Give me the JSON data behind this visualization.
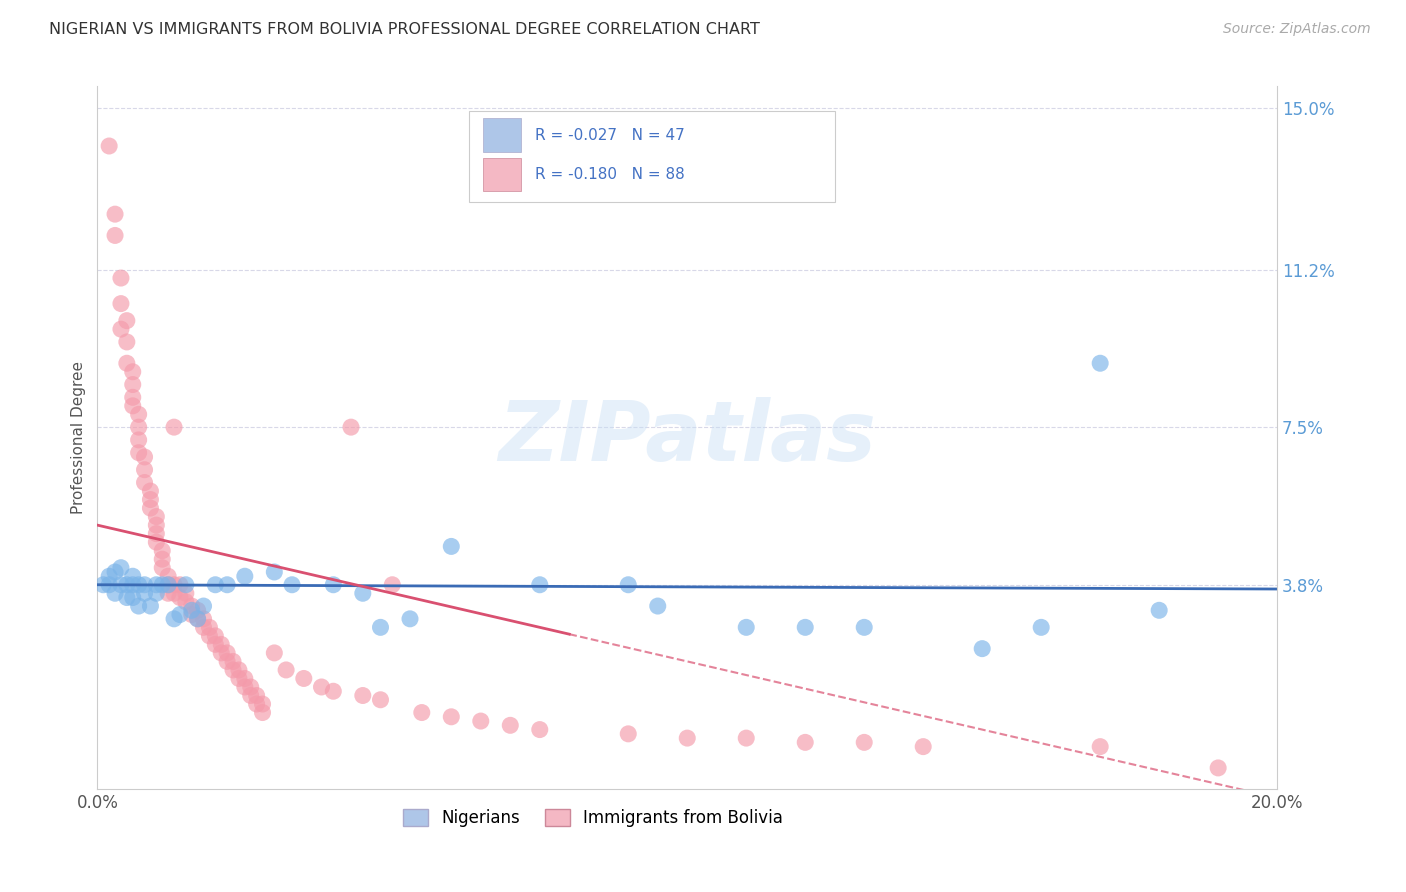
{
  "title": "NIGERIAN VS IMMIGRANTS FROM BOLIVIA PROFESSIONAL DEGREE CORRELATION CHART",
  "source": "Source: ZipAtlas.com",
  "ylabel": "Professional Degree",
  "watermark": "ZIPatlas",
  "xmin": 0.0,
  "xmax": 0.2,
  "ymin": -0.01,
  "ymax": 0.155,
  "ytick_vals": [
    0.038,
    0.075,
    0.112,
    0.15
  ],
  "ytick_labels": [
    "3.8%",
    "7.5%",
    "11.2%",
    "15.0%"
  ],
  "xtick_vals": [
    0.0,
    0.2
  ],
  "xtick_labels": [
    "0.0%",
    "20.0%"
  ],
  "nigerian_color": "#7ab3e8",
  "bolivian_color": "#f49aaa",
  "trend_nigerian_color": "#3a6bb5",
  "trend_bolivian_color": "#d95070",
  "background_color": "#ffffff",
  "grid_color": "#d8d8e8",
  "legend_blue_color": "#aec6e8",
  "legend_pink_color": "#f4b8c4",
  "nigerian_points": [
    [
      0.001,
      0.038
    ],
    [
      0.002,
      0.038
    ],
    [
      0.002,
      0.04
    ],
    [
      0.003,
      0.036
    ],
    [
      0.003,
      0.041
    ],
    [
      0.004,
      0.038
    ],
    [
      0.004,
      0.042
    ],
    [
      0.005,
      0.035
    ],
    [
      0.005,
      0.038
    ],
    [
      0.006,
      0.038
    ],
    [
      0.006,
      0.035
    ],
    [
      0.006,
      0.04
    ],
    [
      0.007,
      0.033
    ],
    [
      0.007,
      0.038
    ],
    [
      0.008,
      0.038
    ],
    [
      0.008,
      0.036
    ],
    [
      0.009,
      0.033
    ],
    [
      0.01,
      0.036
    ],
    [
      0.01,
      0.038
    ],
    [
      0.011,
      0.038
    ],
    [
      0.012,
      0.038
    ],
    [
      0.013,
      0.03
    ],
    [
      0.014,
      0.031
    ],
    [
      0.015,
      0.038
    ],
    [
      0.016,
      0.032
    ],
    [
      0.017,
      0.03
    ],
    [
      0.018,
      0.033
    ],
    [
      0.02,
      0.038
    ],
    [
      0.022,
      0.038
    ],
    [
      0.025,
      0.04
    ],
    [
      0.03,
      0.041
    ],
    [
      0.033,
      0.038
    ],
    [
      0.04,
      0.038
    ],
    [
      0.045,
      0.036
    ],
    [
      0.048,
      0.028
    ],
    [
      0.053,
      0.03
    ],
    [
      0.06,
      0.047
    ],
    [
      0.075,
      0.038
    ],
    [
      0.09,
      0.038
    ],
    [
      0.095,
      0.033
    ],
    [
      0.11,
      0.028
    ],
    [
      0.12,
      0.028
    ],
    [
      0.13,
      0.028
    ],
    [
      0.15,
      0.023
    ],
    [
      0.16,
      0.028
    ],
    [
      0.17,
      0.09
    ],
    [
      0.18,
      0.032
    ]
  ],
  "bolivian_points": [
    [
      0.002,
      0.141
    ],
    [
      0.003,
      0.125
    ],
    [
      0.003,
      0.12
    ],
    [
      0.004,
      0.11
    ],
    [
      0.004,
      0.104
    ],
    [
      0.004,
      0.098
    ],
    [
      0.005,
      0.1
    ],
    [
      0.005,
      0.095
    ],
    [
      0.005,
      0.09
    ],
    [
      0.006,
      0.088
    ],
    [
      0.006,
      0.085
    ],
    [
      0.006,
      0.082
    ],
    [
      0.006,
      0.08
    ],
    [
      0.007,
      0.078
    ],
    [
      0.007,
      0.075
    ],
    [
      0.007,
      0.072
    ],
    [
      0.007,
      0.069
    ],
    [
      0.008,
      0.068
    ],
    [
      0.008,
      0.065
    ],
    [
      0.008,
      0.062
    ],
    [
      0.009,
      0.06
    ],
    [
      0.009,
      0.058
    ],
    [
      0.009,
      0.056
    ],
    [
      0.01,
      0.054
    ],
    [
      0.01,
      0.052
    ],
    [
      0.01,
      0.05
    ],
    [
      0.01,
      0.048
    ],
    [
      0.011,
      0.046
    ],
    [
      0.011,
      0.044
    ],
    [
      0.011,
      0.042
    ],
    [
      0.012,
      0.04
    ],
    [
      0.012,
      0.038
    ],
    [
      0.012,
      0.036
    ],
    [
      0.013,
      0.075
    ],
    [
      0.013,
      0.038
    ],
    [
      0.013,
      0.036
    ],
    [
      0.014,
      0.038
    ],
    [
      0.014,
      0.035
    ],
    [
      0.015,
      0.036
    ],
    [
      0.015,
      0.034
    ],
    [
      0.016,
      0.033
    ],
    [
      0.016,
      0.031
    ],
    [
      0.017,
      0.032
    ],
    [
      0.017,
      0.03
    ],
    [
      0.018,
      0.03
    ],
    [
      0.018,
      0.028
    ],
    [
      0.019,
      0.028
    ],
    [
      0.019,
      0.026
    ],
    [
      0.02,
      0.026
    ],
    [
      0.02,
      0.024
    ],
    [
      0.021,
      0.024
    ],
    [
      0.021,
      0.022
    ],
    [
      0.022,
      0.022
    ],
    [
      0.022,
      0.02
    ],
    [
      0.023,
      0.02
    ],
    [
      0.023,
      0.018
    ],
    [
      0.024,
      0.018
    ],
    [
      0.024,
      0.016
    ],
    [
      0.025,
      0.016
    ],
    [
      0.025,
      0.014
    ],
    [
      0.026,
      0.014
    ],
    [
      0.026,
      0.012
    ],
    [
      0.027,
      0.012
    ],
    [
      0.027,
      0.01
    ],
    [
      0.028,
      0.01
    ],
    [
      0.028,
      0.008
    ],
    [
      0.03,
      0.022
    ],
    [
      0.032,
      0.018
    ],
    [
      0.035,
      0.016
    ],
    [
      0.038,
      0.014
    ],
    [
      0.04,
      0.013
    ],
    [
      0.043,
      0.075
    ],
    [
      0.045,
      0.012
    ],
    [
      0.048,
      0.011
    ],
    [
      0.05,
      0.038
    ],
    [
      0.055,
      0.008
    ],
    [
      0.06,
      0.007
    ],
    [
      0.065,
      0.006
    ],
    [
      0.07,
      0.005
    ],
    [
      0.075,
      0.004
    ],
    [
      0.09,
      0.003
    ],
    [
      0.1,
      0.002
    ],
    [
      0.11,
      0.002
    ],
    [
      0.12,
      0.001
    ],
    [
      0.13,
      0.001
    ],
    [
      0.14,
      0.0
    ],
    [
      0.17,
      0.0
    ],
    [
      0.19,
      -0.005
    ]
  ],
  "trend_nig_y0": 0.038,
  "trend_nig_y1": 0.037,
  "trend_bol_y0": 0.052,
  "trend_bol_y1": -0.012,
  "trend_bol_ext_y0": 0.038,
  "trend_bol_ext_y1": -0.012
}
